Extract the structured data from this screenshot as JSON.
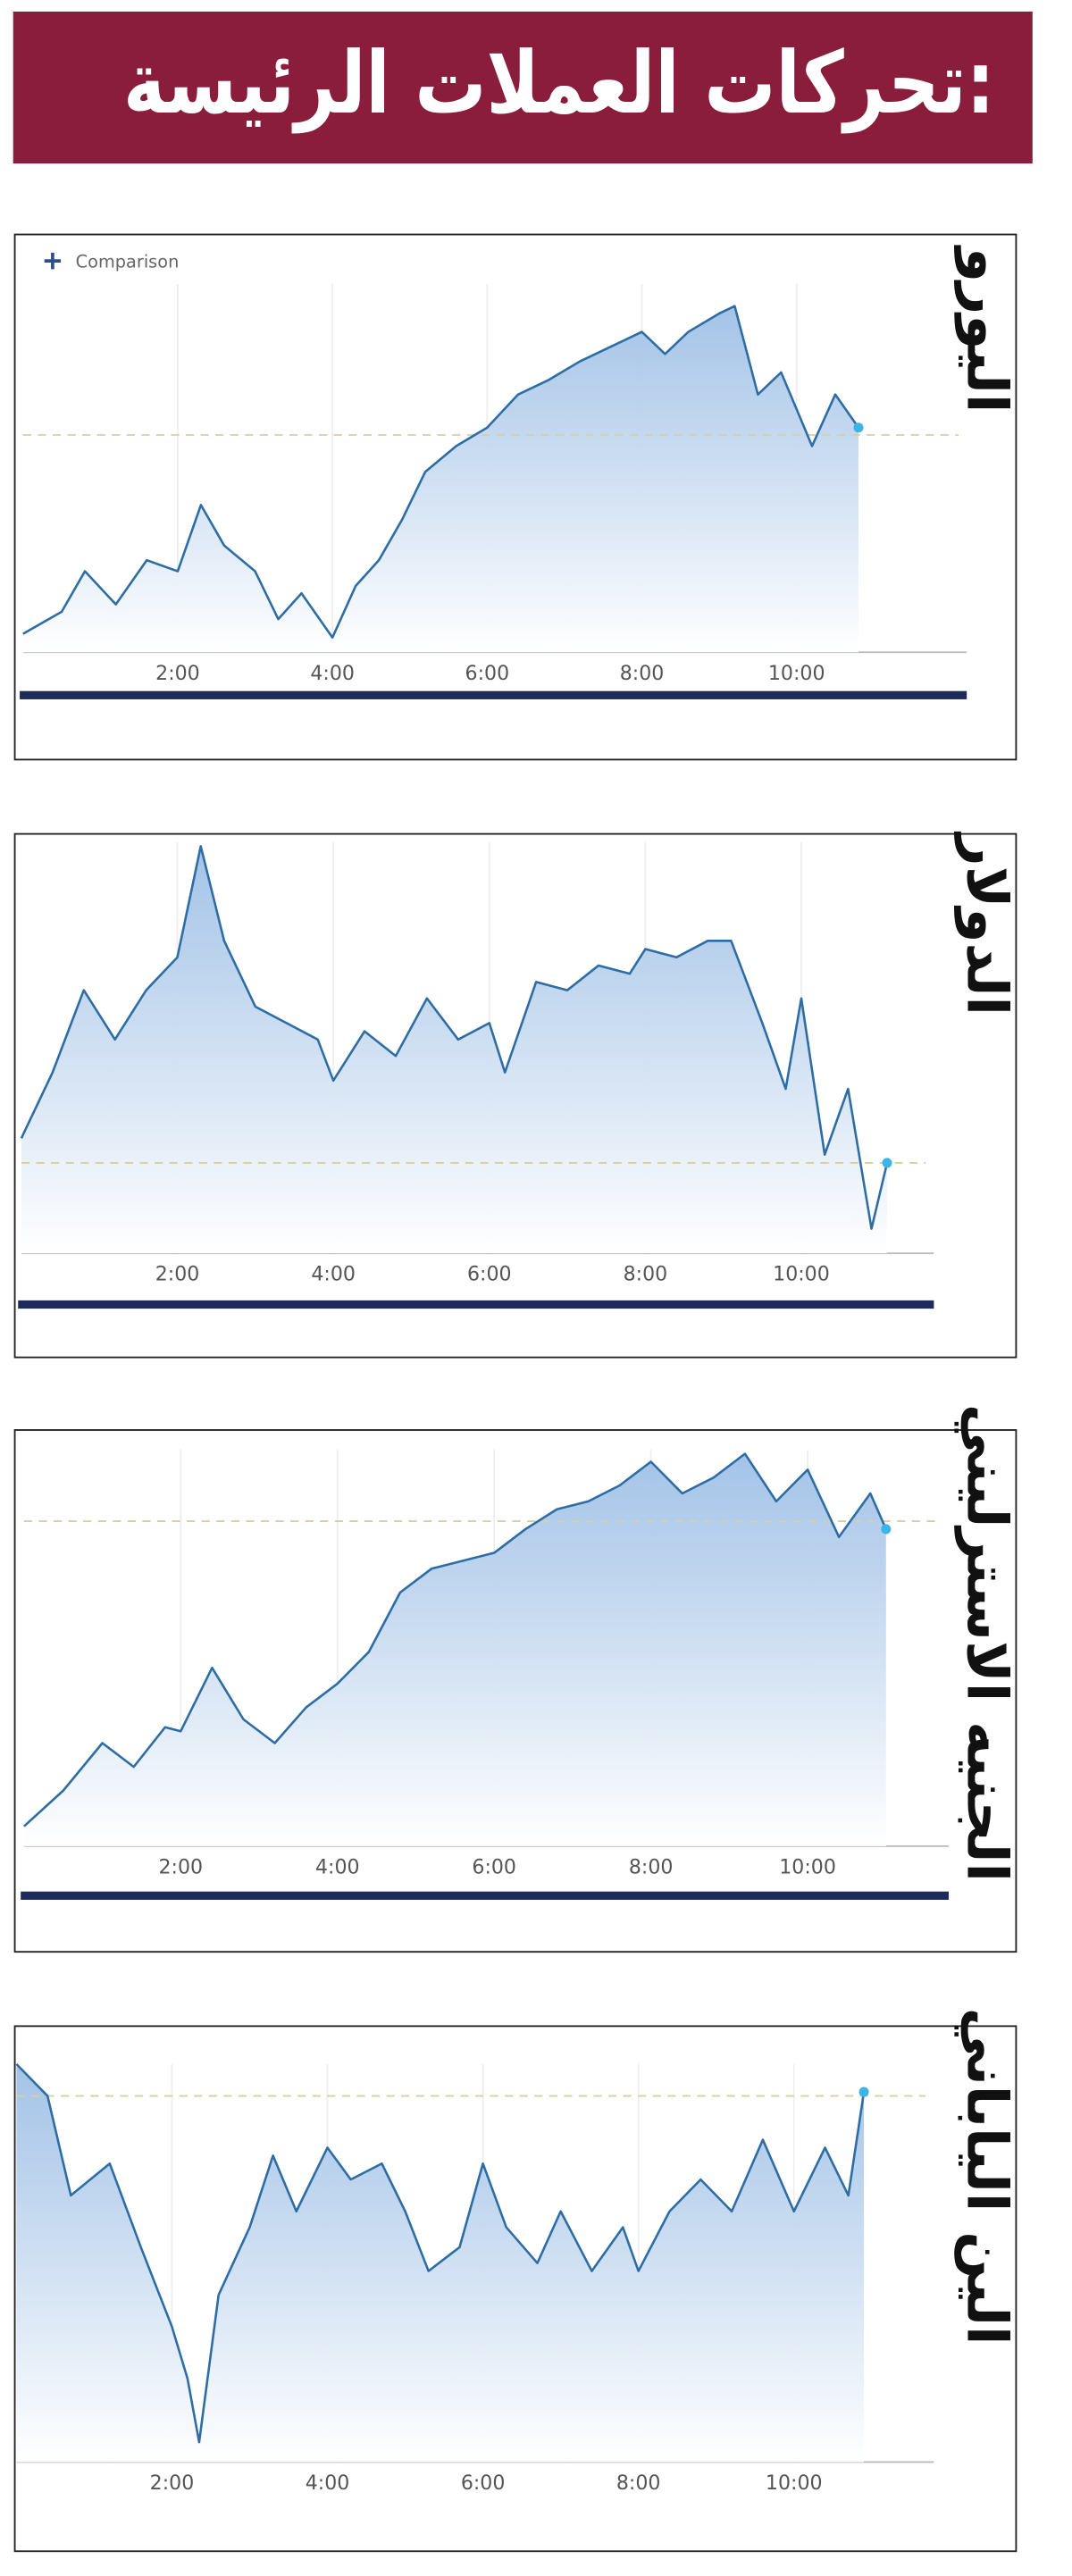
{
  "header": {
    "title": "تحركات العملات الرئيسة:"
  },
  "chart_data": [
    {
      "type": "line",
      "title": "اليورو",
      "annotation": "Comparison",
      "color": "#2e6da4",
      "grid": true,
      "reference": 59,
      "x": [
        0,
        0.5,
        0.8,
        1.2,
        1.6,
        2.0,
        2.3,
        2.6,
        3.0,
        3.3,
        3.6,
        4.0,
        4.3,
        4.6,
        4.9,
        5.2,
        5.6,
        6.0,
        6.4,
        6.8,
        7.2,
        7.6,
        8.0,
        8.3,
        8.6,
        9.0,
        9.2,
        9.5,
        9.8,
        10.2,
        10.5,
        10.8
      ],
      "values": [
        5,
        11,
        22,
        13,
        25,
        22,
        40,
        29,
        22,
        9,
        16,
        4,
        18,
        25,
        36,
        49,
        56,
        61,
        70,
        74,
        79,
        83,
        87,
        81,
        87,
        92,
        94,
        70,
        76,
        56,
        70,
        61
      ],
      "xlim": [
        0,
        12.2
      ],
      "ylim": [
        0,
        100
      ],
      "xticks": [
        {
          "value": 2,
          "label": "2:00"
        },
        {
          "value": 4,
          "label": "4:00"
        },
        {
          "value": 6,
          "label": "6:00"
        },
        {
          "value": 8,
          "label": "8:00"
        },
        {
          "value": 10,
          "label": "10:00"
        }
      ]
    },
    {
      "type": "line",
      "title": "الدولار",
      "color": "#2e6da4",
      "grid": true,
      "reference": 22,
      "x": [
        0,
        0.4,
        0.8,
        1.2,
        1.6,
        2.0,
        2.3,
        2.6,
        3.0,
        3.4,
        3.8,
        4.0,
        4.4,
        4.8,
        5.2,
        5.6,
        6.0,
        6.2,
        6.6,
        7.0,
        7.4,
        7.8,
        8.0,
        8.4,
        8.8,
        9.1,
        9.5,
        9.8,
        10.0,
        10.3,
        10.6,
        10.9,
        11.1
      ],
      "values": [
        28,
        44,
        64,
        52,
        64,
        72,
        99,
        76,
        60,
        56,
        52,
        42,
        54,
        48,
        62,
        52,
        56,
        44,
        66,
        64,
        70,
        68,
        74,
        72,
        76,
        76,
        56,
        40,
        62,
        24,
        40,
        6,
        22
      ],
      "xlim": [
        0,
        11.7
      ],
      "ylim": [
        0,
        100
      ],
      "xticks": [
        {
          "value": 2,
          "label": "2:00"
        },
        {
          "value": 4,
          "label": "4:00"
        },
        {
          "value": 6,
          "label": "6:00"
        },
        {
          "value": 8,
          "label": "8:00"
        },
        {
          "value": 10,
          "label": "10:00"
        }
      ]
    },
    {
      "type": "line",
      "title": "الجنيه الاسترليني",
      "color": "#2e6da4",
      "grid": true,
      "reference": 82,
      "x": [
        0,
        0.5,
        1.0,
        1.4,
        1.8,
        2.0,
        2.4,
        2.8,
        3.2,
        3.6,
        4.0,
        4.4,
        4.8,
        5.2,
        5.6,
        6.0,
        6.4,
        6.8,
        7.2,
        7.6,
        8.0,
        8.4,
        8.8,
        9.2,
        9.6,
        10.0,
        10.4,
        10.8,
        11.0
      ],
      "values": [
        5,
        14,
        26,
        20,
        30,
        29,
        45,
        32,
        26,
        35,
        41,
        49,
        64,
        70,
        72,
        74,
        80,
        85,
        87,
        91,
        97,
        89,
        93,
        99,
        87,
        95,
        78,
        89,
        80
      ],
      "xlim": [
        0,
        11.8
      ],
      "ylim": [
        0,
        100
      ],
      "xticks": [
        {
          "value": 2,
          "label": "2:00"
        },
        {
          "value": 4,
          "label": "4:00"
        },
        {
          "value": 6,
          "label": "6:00"
        },
        {
          "value": 8,
          "label": "8:00"
        },
        {
          "value": 10,
          "label": "10:00"
        }
      ]
    },
    {
      "type": "line",
      "title": "الين الياباني",
      "color": "#2e6da4",
      "grid": true,
      "reference": 92,
      "x": [
        0,
        0.4,
        0.7,
        1.2,
        1.6,
        2.0,
        2.2,
        2.35,
        2.6,
        3.0,
        3.3,
        3.6,
        4.0,
        4.3,
        4.7,
        5.0,
        5.3,
        5.7,
        6.0,
        6.3,
        6.7,
        7.0,
        7.4,
        7.8,
        8.0,
        8.4,
        8.8,
        9.2,
        9.6,
        10.0,
        10.4,
        10.7,
        10.9
      ],
      "values": [
        100,
        92,
        67,
        75,
        54,
        34,
        21,
        5,
        42,
        59,
        77,
        63,
        79,
        71,
        75,
        63,
        48,
        54,
        75,
        59,
        50,
        63,
        48,
        59,
        48,
        63,
        71,
        63,
        81,
        63,
        79,
        67,
        93
      ],
      "xlim": [
        0,
        11.8
      ],
      "ylim": [
        0,
        100
      ],
      "xticks": [
        {
          "value": 2,
          "label": "2:00"
        },
        {
          "value": 4,
          "label": "4:00"
        },
        {
          "value": 6,
          "label": "6:00"
        },
        {
          "value": 8,
          "label": "8:00"
        },
        {
          "value": 10,
          "label": "10:00"
        }
      ]
    }
  ]
}
